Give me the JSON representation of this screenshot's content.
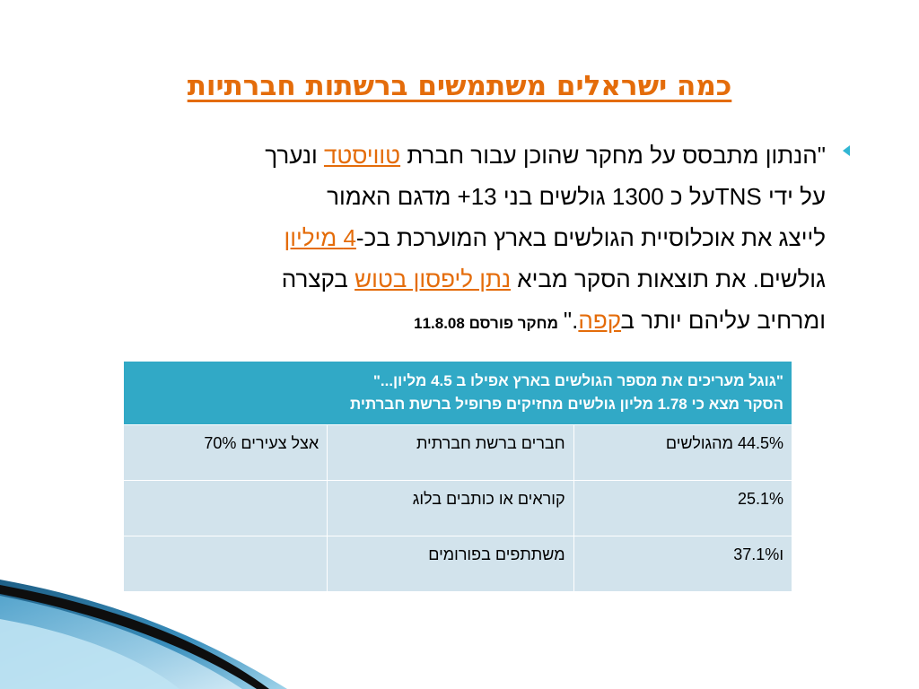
{
  "slide": {
    "title": "כמה ישראלים משתמשים ברשתות חברתיות"
  },
  "paragraph": {
    "l1_a": "\"הנתון מתבסס על מחקר שהוכן עבור חברת ",
    "l1_link": "טוויסטד",
    "l1_b": " ונערך",
    "l2": "על ידי  TNSעל כ 1300 גולשים בני 13+ מדגם האמור",
    "l3_a": "לייצג את אוכלוסיית הגולשים בארץ המוערכת בכ-",
    "l3_link": "4 מיליון",
    "l4_a": "גולשים. את תוצאות הסקר מביא ",
    "l4_link": "נתן ליפסון בטוש",
    "l4_b": " בקצרה",
    "l5_a": "ומרחיב עליהם יותר ב",
    "l5_link": "קפה",
    "l5_b": ".\"",
    "l5_note": "מחקר פורסם 11.8.08"
  },
  "table": {
    "header_line1": "\"גוגל מעריכים את מספר הגולשים בארץ אפילו ב 4.5  מליון...\"",
    "header_line2": "הסקר מצא כי 1.78 מליון גולשים מחזיקים פרופיל ברשת חברתית",
    "rows": [
      [
        "44.5% מהגולשים",
        "חברים ברשת חברתית",
        "אצל צעירים 70%"
      ],
      [
        "25.1%",
        "קוראים או כותבים בלוג",
        ""
      ],
      [
        "ו37.1%",
        "משתתפים בפורומים",
        ""
      ]
    ]
  },
  "colors": {
    "title": "#e46c0a",
    "link": "#e46c0a",
    "bullet": "#31b6d3",
    "table_header": "#31a9c6",
    "table_cell": "#d2e3ec"
  },
  "icons": {
    "bullet": "triangle-bullet-icon"
  }
}
